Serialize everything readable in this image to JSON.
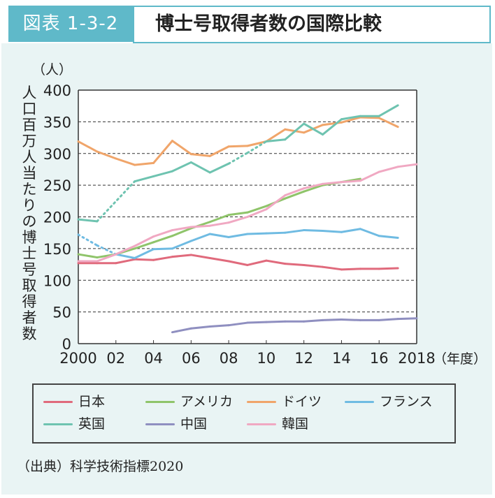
{
  "figure": {
    "tag": "図表 1-3-2",
    "title": "博士号取得者数の国際比較",
    "source": "（出典）科学技術指標2020"
  },
  "colors": {
    "accent": "#5fb9c9",
    "japan": "#e06a7c",
    "usa": "#8fc46a",
    "germany": "#f0a56a",
    "france": "#6fbbe2",
    "uk": "#6ec3b0",
    "china": "#8f8fc0",
    "korea": "#f0a8c2"
  },
  "chart_data": {
    "type": "line",
    "unit_label": "（人）",
    "ylabel": "人口百万人当たりの博士号取得者数",
    "xlabel": "（年度）",
    "ylim": [
      0,
      400
    ],
    "xlim": [
      2000,
      2018
    ],
    "yticks": [
      0,
      50,
      100,
      150,
      200,
      250,
      300,
      350,
      400
    ],
    "xticks": [
      {
        "value": 2000,
        "label": "2000"
      },
      {
        "value": 2002,
        "label": "02"
      },
      {
        "value": 2004,
        "label": "04"
      },
      {
        "value": 2006,
        "label": "06"
      },
      {
        "value": 2008,
        "label": "08"
      },
      {
        "value": 2010,
        "label": "10"
      },
      {
        "value": 2012,
        "label": "12"
      },
      {
        "value": 2014,
        "label": "14"
      },
      {
        "value": 2016,
        "label": "16"
      },
      {
        "value": 2018,
        "label": "2018"
      }
    ],
    "grid": "horizontal dashed",
    "series": [
      {
        "name": "日本",
        "color_key": "japan",
        "x": [
          2000,
          2001,
          2002,
          2003,
          2004,
          2005,
          2006,
          2007,
          2008,
          2009,
          2010,
          2011,
          2012,
          2013,
          2014,
          2015,
          2016,
          2017
        ],
        "y": [
          127,
          127,
          127,
          133,
          132,
          137,
          140,
          135,
          130,
          124,
          131,
          126,
          124,
          121,
          117,
          118,
          118,
          119
        ]
      },
      {
        "name": "アメリカ",
        "color_key": "usa",
        "x": [
          2000,
          2001,
          2002,
          2003,
          2004,
          2005,
          2006,
          2007,
          2008,
          2009,
          2010,
          2011,
          2012,
          2013,
          2014,
          2015
        ],
        "y": [
          141,
          136,
          141,
          150,
          160,
          170,
          182,
          192,
          203,
          207,
          217,
          229,
          240,
          250,
          255,
          260
        ]
      },
      {
        "name": "ドイツ",
        "color_key": "germany",
        "x": [
          2000,
          2001,
          2002,
          2003,
          2004,
          2005,
          2006,
          2007,
          2008,
          2009,
          2010,
          2011,
          2012,
          2013,
          2014,
          2015,
          2016,
          2017
        ],
        "y": [
          319,
          303,
          292,
          282,
          285,
          320,
          299,
          296,
          311,
          312,
          319,
          338,
          333,
          345,
          349,
          357,
          356,
          342
        ]
      },
      {
        "name": "フランス",
        "color_key": "france",
        "x": [
          2000,
          2001,
          2002,
          2003,
          2004,
          2005,
          2006,
          2007,
          2008,
          2009,
          2010,
          2011,
          2012,
          2013,
          2014,
          2015,
          2016,
          2017
        ],
        "y": [
          172,
          155,
          141,
          135,
          149,
          150,
          162,
          173,
          168,
          173,
          174,
          175,
          179,
          178,
          176,
          181,
          170,
          167
        ],
        "dashed_until": 2002
      },
      {
        "name": "英国",
        "color_key": "uk",
        "x": [
          2000,
          2001,
          2003,
          2004,
          2005,
          2006,
          2007,
          2008,
          2009,
          2010,
          2011,
          2012,
          2013,
          2014,
          2015,
          2016,
          2017
        ],
        "y": [
          196,
          193,
          256,
          264,
          272,
          286,
          270,
          284,
          301,
          319,
          322,
          347,
          330,
          354,
          359,
          359,
          376
        ],
        "dashed_segments": [
          [
            2001,
            2003
          ],
          [
            2008,
            2010
          ]
        ]
      },
      {
        "name": "中国",
        "color_key": "china",
        "x": [
          2005,
          2006,
          2007,
          2008,
          2009,
          2010,
          2011,
          2012,
          2013,
          2014,
          2015,
          2016,
          2017,
          2018
        ],
        "y": [
          18,
          24,
          27,
          29,
          33,
          34,
          35,
          35,
          37,
          38,
          37,
          37,
          39,
          40
        ]
      },
      {
        "name": "韓国",
        "color_key": "korea",
        "x": [
          2000,
          2001,
          2002,
          2003,
          2004,
          2005,
          2006,
          2007,
          2008,
          2009,
          2010,
          2011,
          2012,
          2013,
          2014,
          2015,
          2016,
          2017,
          2018
        ],
        "y": [
          130,
          130,
          141,
          154,
          169,
          179,
          184,
          186,
          191,
          200,
          212,
          234,
          245,
          252,
          255,
          257,
          271,
          279,
          283
        ]
      }
    ]
  }
}
